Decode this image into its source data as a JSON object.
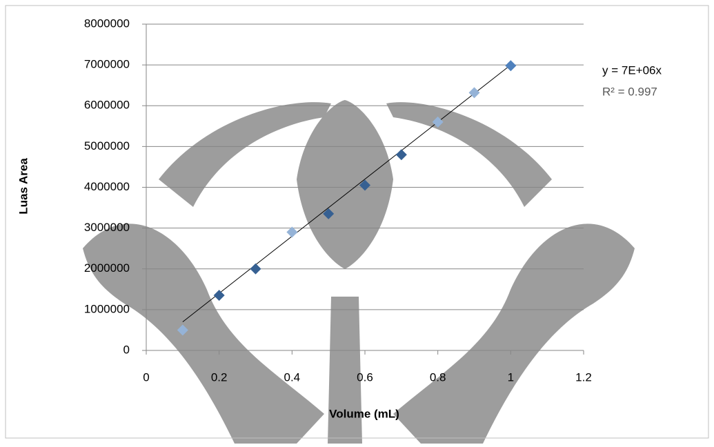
{
  "chart_data": {
    "type": "scatter",
    "x_label": "Volume (mL)",
    "y_label": "Luas Area",
    "x": [
      0.1,
      0.2,
      0.3,
      0.4,
      0.5,
      0.6,
      0.7,
      0.8,
      0.9,
      1.0
    ],
    "values": [
      500000,
      1350000,
      2000000,
      2900000,
      3350000,
      4050000,
      4800000,
      5600000,
      6320000,
      6980000
    ],
    "point_colors": [
      "#95b3d7",
      "#366092",
      "#366092",
      "#95b3d7",
      "#366092",
      "#366092",
      "#366092",
      "#95b3d7",
      "#95b3d7",
      "#4f81bd"
    ],
    "xlim": [
      0,
      1.2
    ],
    "xticks": [
      0,
      0.2,
      0.4,
      0.6,
      0.8,
      1,
      1.2
    ],
    "ylim": [
      0,
      8000000
    ],
    "yticks": [
      0,
      1000000,
      2000000,
      3000000,
      4000000,
      5000000,
      6000000,
      7000000,
      8000000
    ],
    "grid": true,
    "trendline": {
      "slope": 7000000,
      "intercept": 0,
      "x_range": [
        0.1,
        1
      ],
      "color": "#000000"
    },
    "equation": "y = 7E+06x",
    "r_squared": "R² = 0.997"
  }
}
